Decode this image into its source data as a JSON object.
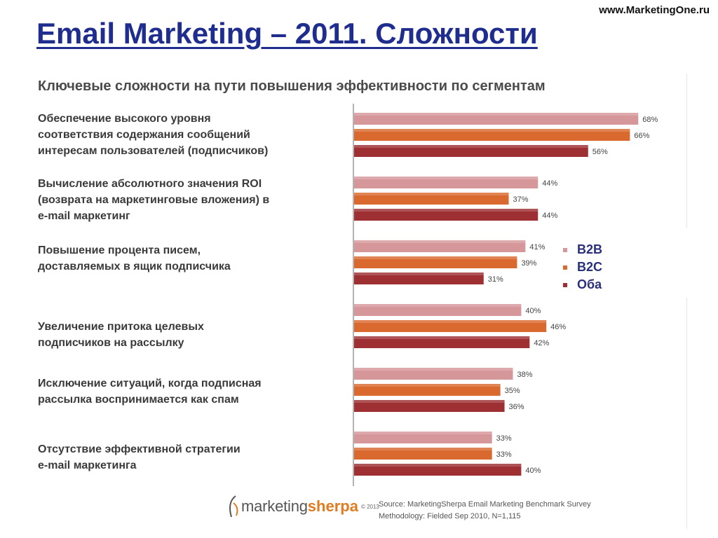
{
  "header": {
    "site": "www.MarketingOne.ru",
    "title": "Email Marketing – 2011. Сложности"
  },
  "chart_data": {
    "type": "bar",
    "orientation": "horizontal",
    "title": "Ключевые сложности на пути повышения эффективности по сегментам",
    "categories": [
      [
        "Обеспечение высокого уровня",
        "соответствия содержания сообщений",
        "интересам пользователей (подписчиков)"
      ],
      [
        "Вычисление абсолютного значения ROI",
        "(возврата на маркетинговые вложения) в",
        "e-mail маркетинг"
      ],
      [
        "Повышение процента писем,",
        "доставляемых в ящик подписчика"
      ],
      [
        "Увеличение притока целевых",
        "подписчиков на рассылку"
      ],
      [
        "Исключение ситуаций, когда подписная",
        "рассылка воспринимается как спам"
      ],
      [
        "Отсутствие эффективной стратегии",
        "e-mail маркетинга"
      ]
    ],
    "series": [
      {
        "name": "B2B",
        "color": "#d6979a",
        "values": [
          68,
          44,
          41,
          40,
          38,
          33
        ]
      },
      {
        "name": "B2C",
        "color": "#d9692e",
        "values": [
          66,
          37,
          39,
          46,
          35,
          33
        ]
      },
      {
        "name": "Оба",
        "color": "#9e3034",
        "values": [
          56,
          44,
          31,
          42,
          36,
          40
        ]
      }
    ],
    "value_suffix": "%",
    "xlim": [
      0,
      70
    ],
    "grid": false,
    "legend": "right"
  },
  "logo": {
    "text": "marketing",
    "accent": "sherpa",
    "copyright": "© 2013"
  },
  "source": {
    "line1": "Source: MarketingSherpa Email Marketing Benchmark Survey",
    "line2": "Methodology: Fielded Sep 2010, N=1,115"
  }
}
